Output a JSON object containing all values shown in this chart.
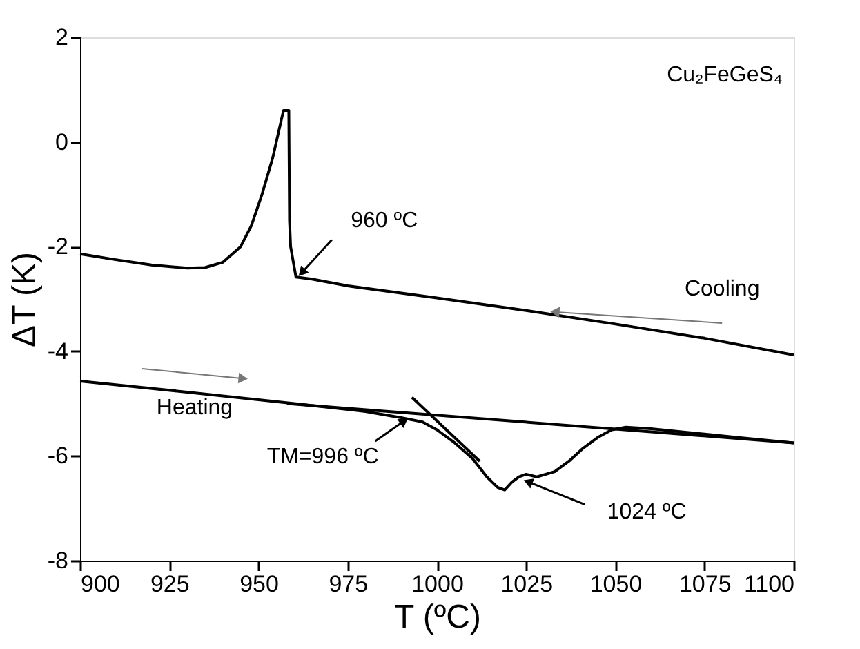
{
  "chart_data": {
    "type": "line",
    "xlabel": "T (ºC)",
    "ylabel": "ΔT (K)",
    "xlim": [
      900,
      1100
    ],
    "ylim": [
      -8,
      2
    ],
    "xticks": [
      900,
      925,
      950,
      975,
      1000,
      1025,
      1050,
      1075,
      1100
    ],
    "yticks": [
      -8,
      -6,
      -4,
      -2,
      0,
      2
    ],
    "grid": false,
    "marker": "none",
    "line_style": "solid",
    "series": [
      {
        "color": "#000000",
        "x": [
          900,
          910,
          920,
          930,
          935,
          940,
          945,
          948,
          951,
          954,
          956,
          957,
          958.5,
          958.7,
          959,
          960.5,
          965,
          975,
          1000,
          1025,
          1050,
          1075,
          1100
        ],
        "values": [
          -2.14,
          -2.25,
          -2.35,
          -2.41,
          -2.4,
          -2.3,
          -2.0,
          -1.6,
          -1.0,
          -0.3,
          0.3,
          0.6,
          0.6,
          -1.5,
          -2.0,
          -2.58,
          -2.62,
          -2.75,
          -2.98,
          -3.22,
          -3.48,
          -3.75,
          -4.07
        ]
      },
      {
        "color": "#000000",
        "x": [
          900,
          930,
          960,
          980,
          990,
          996,
          1000,
          1005,
          1010,
          1014,
          1017,
          1019,
          1021,
          1023,
          1025,
          1028,
          1033,
          1037,
          1041,
          1045,
          1049,
          1053,
          1060,
          1070,
          1085,
          1100
        ],
        "values": [
          -4.57,
          -4.78,
          -5.0,
          -5.15,
          -5.27,
          -5.35,
          -5.5,
          -5.75,
          -6.05,
          -6.4,
          -6.6,
          -6.65,
          -6.5,
          -6.4,
          -6.35,
          -6.4,
          -6.3,
          -6.1,
          -5.85,
          -5.65,
          -5.5,
          -5.45,
          -5.48,
          -5.55,
          -5.65,
          -5.75
        ]
      },
      {
        "color": "#000000",
        "x": [
          958,
          1100
        ],
        "values": [
          -5.0,
          -5.75
        ]
      },
      {
        "color": "#000000",
        "x": [
          993,
          1012
        ],
        "values": [
          -4.88,
          -6.1
        ]
      }
    ],
    "annotations": [
      {
        "text": "960 ºC",
        "x": 960.5,
        "y": -2.58
      },
      {
        "text": "TM=996 ºC",
        "x": 992,
        "y": -5.27
      },
      {
        "text": "1024 ºC",
        "x": 1024,
        "y": -6.4
      },
      {
        "text": "Cooling",
        "x": 1033.5,
        "y": -3.25
      },
      "Heating",
      "Cu₂FeGeS₄"
    ]
  }
}
